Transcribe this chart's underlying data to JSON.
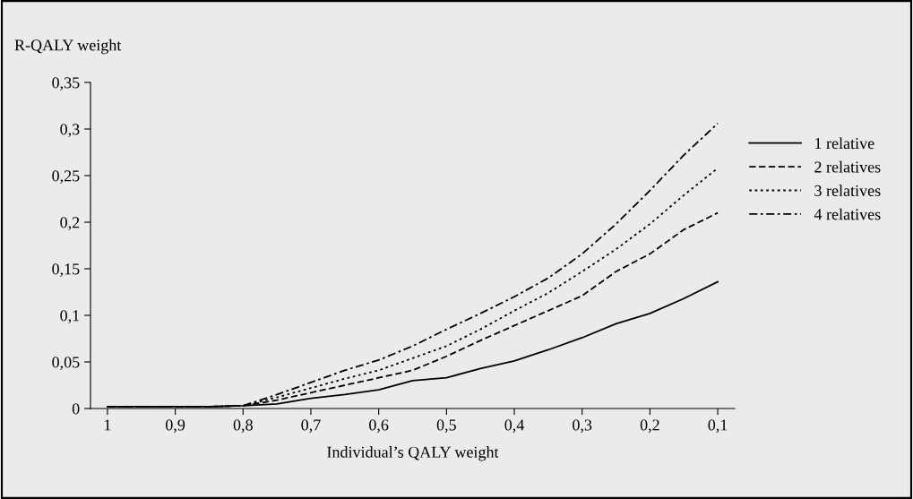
{
  "chart_data": {
    "type": "line",
    "ylabel": "R-QALY weight",
    "xlabel": "Individual’s QALY weight",
    "x": [
      1,
      0.95,
      0.9,
      0.85,
      0.8,
      0.75,
      0.7,
      0.65,
      0.6,
      0.55,
      0.5,
      0.45,
      0.4,
      0.35,
      0.3,
      0.25,
      0.2,
      0.15,
      0.1
    ],
    "series": [
      {
        "name": "1 relative",
        "color": "#000000",
        "line_style": "solid",
        "values": [
          0.002,
          0.002,
          0.002,
          0.002,
          0.003,
          0.005,
          0.011,
          0.015,
          0.02,
          0.03,
          0.033,
          0.043,
          0.051,
          0.063,
          0.076,
          0.091,
          0.102,
          0.118,
          0.136
        ]
      },
      {
        "name": "2 relatives",
        "color": "#000000",
        "line_style": "dashed",
        "values": [
          0.002,
          0.002,
          0.002,
          0.002,
          0.003,
          0.009,
          0.017,
          0.025,
          0.033,
          0.041,
          0.056,
          0.073,
          0.089,
          0.105,
          0.121,
          0.147,
          0.166,
          0.192,
          0.21
        ]
      },
      {
        "name": "3 relatives",
        "color": "#000000",
        "line_style": "dotted",
        "values": [
          0.002,
          0.002,
          0.002,
          0.002,
          0.003,
          0.012,
          0.022,
          0.032,
          0.041,
          0.054,
          0.067,
          0.085,
          0.105,
          0.124,
          0.147,
          0.171,
          0.198,
          0.229,
          0.258
        ]
      },
      {
        "name": "4 relatives",
        "color": "#000000",
        "line_style": "dashdot",
        "values": [
          0.002,
          0.002,
          0.002,
          0.002,
          0.003,
          0.015,
          0.028,
          0.041,
          0.052,
          0.067,
          0.085,
          0.102,
          0.12,
          0.14,
          0.166,
          0.198,
          0.234,
          0.272,
          0.306
        ]
      }
    ],
    "xlim": [
      1.025,
      0.075
    ],
    "xticks": [
      {
        "value": 1,
        "label": "1"
      },
      {
        "value": 0.9,
        "label": "0,9"
      },
      {
        "value": 0.8,
        "label": "0,8"
      },
      {
        "value": 0.7,
        "label": "0,7"
      },
      {
        "value": 0.6,
        "label": "0,6"
      },
      {
        "value": 0.5,
        "label": "0,5"
      },
      {
        "value": 0.4,
        "label": "0,4"
      },
      {
        "value": 0.3,
        "label": "0,3"
      },
      {
        "value": 0.2,
        "label": "0,2"
      },
      {
        "value": 0.1,
        "label": "0,1"
      }
    ],
    "ylim": [
      0,
      0.35
    ],
    "yticks": [
      0,
      {
        "value": 0.05,
        "label": "0,05"
      },
      {
        "value": 0.1,
        "label": "0,1"
      },
      {
        "value": 0.15,
        "label": "0,15"
      },
      {
        "value": 0.2,
        "label": "0,2"
      },
      {
        "value": 0.25,
        "label": "0,25"
      },
      {
        "value": 0.3,
        "label": "0,3"
      },
      {
        "value": 0.35,
        "label": "0,35"
      }
    ],
    "grid": false,
    "legend": "right"
  }
}
